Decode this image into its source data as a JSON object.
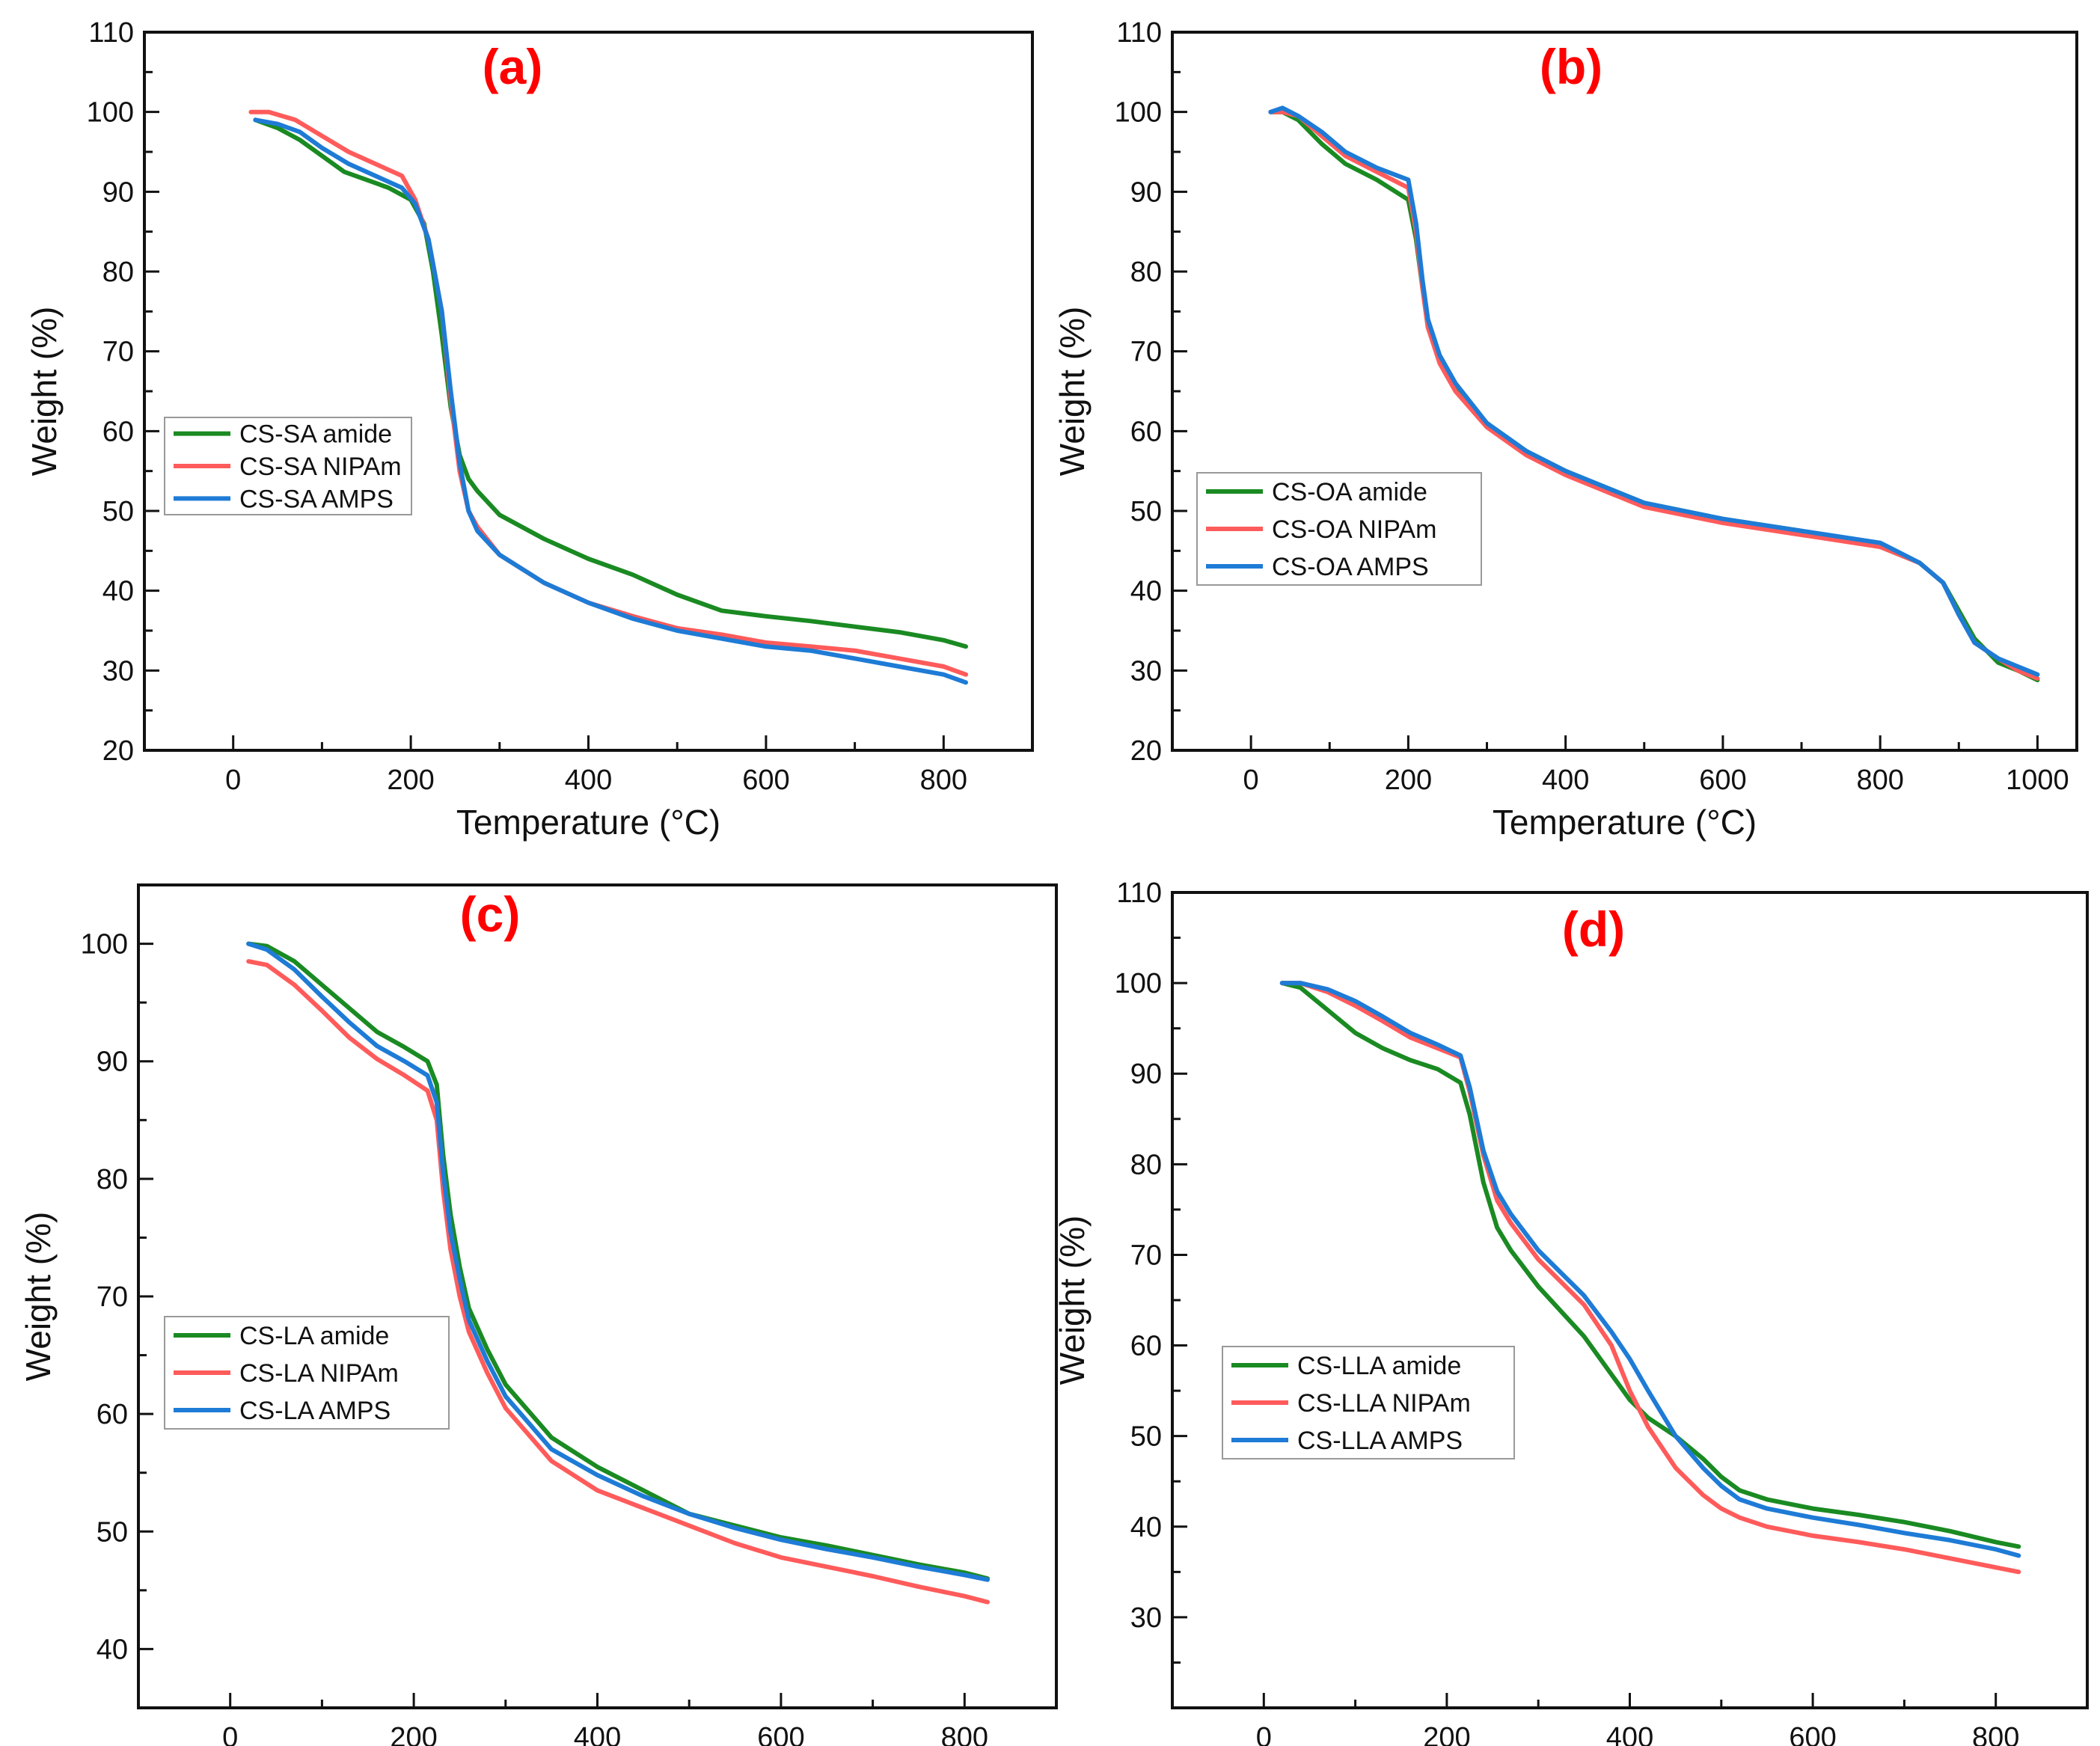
{
  "colors": {
    "amide": "#1a8a22",
    "nipam": "#ff5b5b",
    "amps": "#1e7bd6",
    "panel_label": "#ff0000",
    "axis": "#111111"
  },
  "chart_data": [
    {
      "type": "line",
      "panel": "(a)",
      "xlabel": "Temperature (°C)",
      "ylabel": "Weight (%)",
      "xlim": [
        -100,
        900
      ],
      "ylim": [
        20,
        110
      ],
      "xticks": [
        0,
        200,
        400,
        600,
        800
      ],
      "yticks": [
        20,
        30,
        40,
        50,
        60,
        70,
        80,
        90,
        100,
        110
      ],
      "legend_position": "center-left",
      "series": [
        {
          "name": "CS-SA amide",
          "color_key": "amide",
          "x": [
            25,
            50,
            75,
            100,
            125,
            150,
            175,
            200,
            215,
            225,
            235,
            245,
            255,
            265,
            275,
            300,
            350,
            400,
            450,
            500,
            550,
            600,
            650,
            700,
            750,
            800,
            825
          ],
          "y": [
            99,
            98,
            96.5,
            94.5,
            92.5,
            91.5,
            90.5,
            89,
            86,
            80,
            72,
            63,
            57,
            54,
            52.5,
            49.5,
            46.5,
            44,
            42,
            39.5,
            37.5,
            36.8,
            36.2,
            35.5,
            34.8,
            33.8,
            33
          ]
        },
        {
          "name": "CS-SA NIPAm",
          "color_key": "nipam",
          "x": [
            20,
            40,
            70,
            100,
            130,
            160,
            190,
            205,
            220,
            235,
            245,
            255,
            265,
            275,
            300,
            350,
            400,
            450,
            500,
            550,
            600,
            650,
            700,
            750,
            800,
            825
          ],
          "y": [
            100,
            100,
            99,
            97,
            95,
            93.5,
            92,
            89,
            84,
            75,
            64,
            55,
            50,
            48,
            44.5,
            41,
            38.5,
            36.8,
            35.3,
            34.5,
            33.5,
            33,
            32.5,
            31.5,
            30.5,
            29.5
          ]
        },
        {
          "name": "CS-SA AMPS",
          "color_key": "amps",
          "x": [
            25,
            50,
            75,
            100,
            130,
            160,
            190,
            205,
            220,
            235,
            245,
            255,
            265,
            275,
            300,
            350,
            400,
            450,
            500,
            550,
            600,
            650,
            700,
            750,
            800,
            825
          ],
          "y": [
            99,
            98.5,
            97.5,
            95.5,
            93.5,
            92,
            90.5,
            88.5,
            84,
            75,
            65,
            56,
            50,
            47.5,
            44.5,
            41,
            38.5,
            36.5,
            35,
            34,
            33,
            32.5,
            31.5,
            30.5,
            29.5,
            28.5
          ]
        }
      ]
    },
    {
      "type": "line",
      "panel": "(b)",
      "xlabel": "Temperature (°C)",
      "ylabel": "Weight (%)",
      "xlim": [
        -100,
        1050
      ],
      "ylim": [
        20,
        110
      ],
      "xticks": [
        0,
        200,
        400,
        600,
        800,
        1000
      ],
      "yticks": [
        20,
        30,
        40,
        50,
        60,
        70,
        80,
        90,
        100,
        110
      ],
      "legend_position": "center-left",
      "series": [
        {
          "name": "CS-OA amide",
          "color_key": "amide",
          "x": [
            25,
            40,
            60,
            90,
            120,
            160,
            200,
            210,
            218,
            225,
            240,
            260,
            300,
            350,
            400,
            500,
            600,
            700,
            800,
            850,
            880,
            900,
            920,
            950,
            975,
            1000
          ],
          "y": [
            100,
            100,
            99,
            96,
            93.5,
            91.5,
            89,
            84,
            78,
            73,
            69,
            65.5,
            61,
            57.5,
            55,
            51,
            49,
            47.5,
            45.5,
            43.5,
            41,
            37.5,
            34,
            31,
            30,
            28.8
          ]
        },
        {
          "name": "CS-OA NIPAm",
          "color_key": "nipam",
          "x": [
            25,
            40,
            60,
            90,
            120,
            160,
            200,
            210,
            218,
            225,
            240,
            260,
            300,
            350,
            400,
            500,
            600,
            700,
            800,
            850,
            880,
            900,
            920,
            950,
            975,
            1000
          ],
          "y": [
            100,
            100,
            99.5,
            97,
            94.5,
            92.5,
            90.5,
            85,
            78,
            73,
            68.5,
            65,
            60.5,
            57,
            54.5,
            50.5,
            48.5,
            47,
            45.5,
            43.5,
            41,
            37,
            33.5,
            31.5,
            30,
            29
          ]
        },
        {
          "name": "CS-OA AMPS",
          "color_key": "amps",
          "x": [
            25,
            40,
            60,
            90,
            120,
            160,
            200,
            210,
            218,
            225,
            240,
            260,
            300,
            350,
            400,
            500,
            600,
            700,
            800,
            850,
            880,
            900,
            920,
            950,
            975,
            1000
          ],
          "y": [
            100,
            100.5,
            99.5,
            97.5,
            95,
            93,
            91.5,
            86,
            79,
            74,
            69.5,
            66,
            61,
            57.5,
            55,
            51,
            49,
            47.5,
            46,
            43.5,
            41,
            37,
            33.5,
            31.5,
            30.5,
            29.5
          ]
        }
      ]
    },
    {
      "type": "line",
      "panel": "(c)",
      "xlabel": "Temperature (°C)",
      "ylabel": "Weight (%)",
      "xlim": [
        -100,
        900
      ],
      "ylim": [
        35,
        105
      ],
      "xticks": [
        0,
        200,
        400,
        600,
        800
      ],
      "yticks": [
        40,
        50,
        60,
        70,
        80,
        90,
        100
      ],
      "legend_position": "center-left",
      "series": [
        {
          "name": "CS-LA amide",
          "color_key": "amide",
          "x": [
            20,
            40,
            70,
            100,
            130,
            160,
            190,
            215,
            225,
            232,
            240,
            250,
            260,
            280,
            300,
            350,
            400,
            450,
            500,
            550,
            600,
            650,
            700,
            750,
            800,
            825
          ],
          "y": [
            100,
            99.8,
            98.5,
            96.5,
            94.5,
            92.5,
            91.2,
            90,
            88,
            82,
            77,
            72.5,
            69,
            65.5,
            62.5,
            58,
            55.5,
            53.5,
            51.5,
            50.5,
            49.5,
            48.8,
            48,
            47.2,
            46.5,
            46
          ]
        },
        {
          "name": "CS-LA NIPAm",
          "color_key": "nipam",
          "x": [
            20,
            40,
            70,
            100,
            130,
            160,
            190,
            215,
            225,
            232,
            240,
            250,
            260,
            280,
            300,
            350,
            400,
            450,
            500,
            550,
            600,
            650,
            700,
            750,
            800,
            825
          ],
          "y": [
            98.5,
            98.2,
            96.5,
            94.3,
            92,
            90.2,
            88.8,
            87.5,
            85,
            79,
            74,
            70,
            67,
            63.5,
            60.5,
            56,
            53.5,
            52,
            50.5,
            49,
            47.8,
            47,
            46.2,
            45.3,
            44.5,
            44
          ]
        },
        {
          "name": "CS-LA AMPS",
          "color_key": "amps",
          "x": [
            20,
            40,
            70,
            100,
            130,
            160,
            190,
            215,
            225,
            232,
            240,
            250,
            260,
            280,
            300,
            350,
            400,
            450,
            500,
            550,
            600,
            650,
            700,
            750,
            800,
            825
          ],
          "y": [
            100,
            99.5,
            97.8,
            95.5,
            93.3,
            91.3,
            90,
            88.8,
            86.5,
            80.5,
            75.5,
            71.5,
            68,
            64.5,
            61.5,
            57,
            54.8,
            53,
            51.5,
            50.3,
            49.3,
            48.5,
            47.8,
            47,
            46.3,
            45.9
          ]
        }
      ]
    },
    {
      "type": "line",
      "panel": "(d)",
      "xlabel": "Temperature (°C)",
      "ylabel": "Weight (%)",
      "xlim": [
        -100,
        900
      ],
      "ylim": [
        20,
        110
      ],
      "xticks": [
        0,
        200,
        400,
        600,
        800
      ],
      "yticks": [
        30,
        40,
        50,
        60,
        70,
        80,
        90,
        100,
        110
      ],
      "legend_position": "bottom-left",
      "series": [
        {
          "name": "CS-LLA amide",
          "color_key": "amide",
          "x": [
            20,
            40,
            70,
            100,
            130,
            160,
            190,
            215,
            225,
            240,
            255,
            270,
            300,
            350,
            400,
            420,
            450,
            480,
            500,
            520,
            550,
            600,
            650,
            700,
            750,
            800,
            825
          ],
          "y": [
            100,
            99.5,
            97,
            94.5,
            92.8,
            91.5,
            90.5,
            89,
            85.5,
            78,
            73,
            70.5,
            66.5,
            61,
            54,
            52,
            50,
            47.5,
            45.5,
            44,
            43,
            42,
            41.3,
            40.5,
            39.5,
            38.3,
            37.8
          ]
        },
        {
          "name": "CS-LLA NIPAm",
          "color_key": "nipam",
          "x": [
            20,
            40,
            70,
            100,
            130,
            160,
            190,
            215,
            225,
            240,
            255,
            270,
            300,
            350,
            380,
            400,
            420,
            450,
            480,
            500,
            520,
            550,
            600,
            650,
            700,
            750,
            800,
            825
          ],
          "y": [
            100,
            100,
            99,
            97.5,
            95.8,
            94,
            92.8,
            91.8,
            88,
            81,
            76,
            73.5,
            69.5,
            64.5,
            60,
            55,
            51,
            46.5,
            43.5,
            42,
            41,
            40,
            39,
            38.3,
            37.5,
            36.5,
            35.5,
            35
          ]
        },
        {
          "name": "CS-LLA AMPS",
          "color_key": "amps",
          "x": [
            20,
            40,
            70,
            100,
            130,
            160,
            190,
            215,
            225,
            240,
            255,
            270,
            300,
            350,
            380,
            400,
            420,
            450,
            480,
            500,
            520,
            550,
            600,
            650,
            700,
            750,
            800,
            825
          ],
          "y": [
            100,
            100,
            99.3,
            98,
            96.3,
            94.5,
            93.2,
            92,
            88.5,
            81.5,
            77,
            74.5,
            70.5,
            65.5,
            61.5,
            58.5,
            55,
            50,
            46.5,
            44.5,
            43,
            42,
            41,
            40.2,
            39.3,
            38.5,
            37.5,
            36.8
          ]
        }
      ]
    }
  ]
}
